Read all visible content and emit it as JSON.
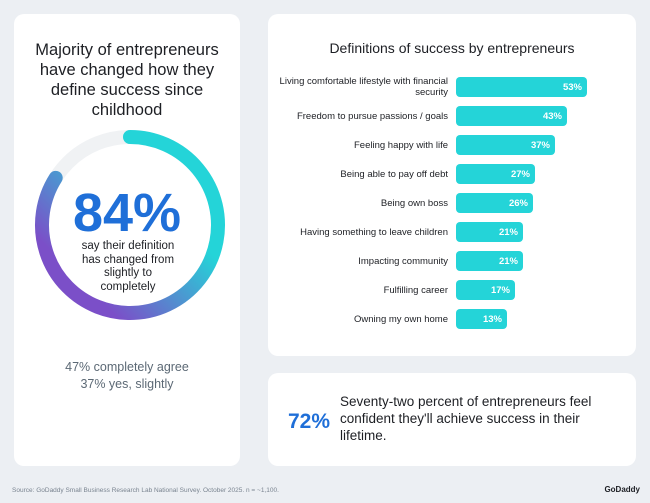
{
  "left_panel": {
    "title": "Majority of entrepreneurs have changed how they define success since childhood",
    "donut": {
      "type": "pie",
      "values": [
        84
      ],
      "value_labels": [
        "84%"
      ],
      "caption": "say their definition has changed from slightly to completely"
    },
    "notes": [
      "47% completely agree",
      "37% yes, slightly"
    ]
  },
  "chart_data": {
    "type": "bar",
    "title": "Definitions of success by entrepreneurs",
    "categories": [
      "Living comfortable lifestyle with financial security",
      "Freedom to pursue passions / goals",
      "Feeling happy with life",
      "Being able to pay off debt",
      "Being own boss",
      "Having something to leave children",
      "Impacting community",
      "Fulfilling career",
      "Owning my own home"
    ],
    "values": [
      53,
      43,
      37,
      27,
      26,
      21,
      21,
      17,
      13
    ],
    "value_labels": [
      "53%",
      "43%",
      "37%",
      "27%",
      "26%",
      "21%",
      "21%",
      "17%",
      "13%"
    ],
    "color": "#24d4d8"
  },
  "callout": {
    "stat": "72%",
    "text": "Seventy-two percent of entrepreneurs feel confident they'll achieve success in their lifetime."
  },
  "footer": {
    "source": "Source: GoDaddy Small Business Research Lab National Survey. October 2025. n = ~1,100.",
    "brand": "GoDaddy"
  }
}
